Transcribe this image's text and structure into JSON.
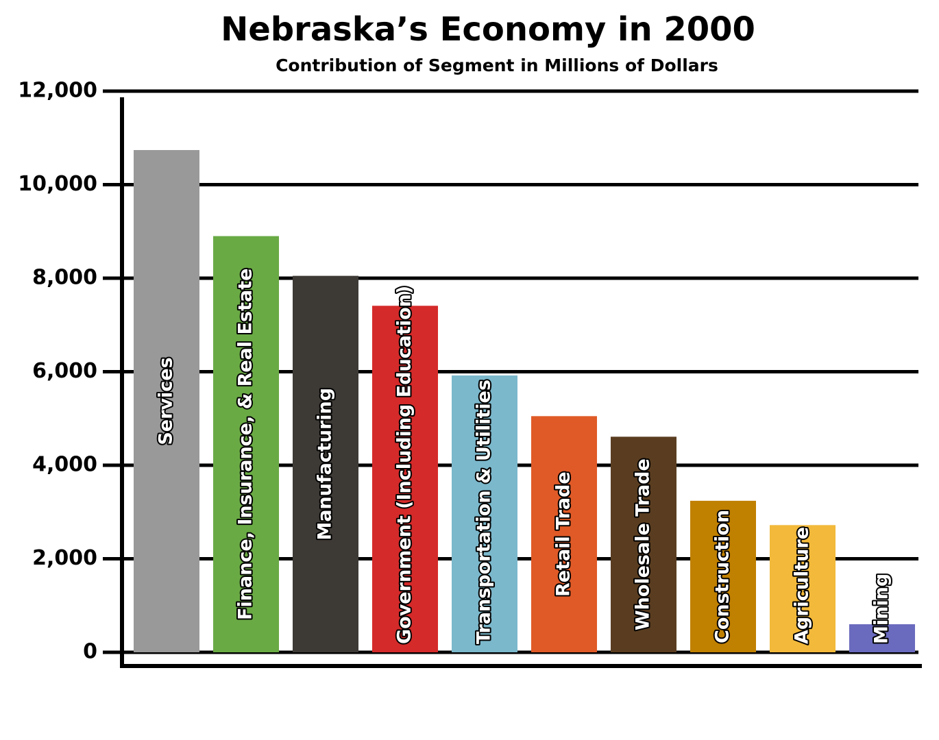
{
  "chart_data": {
    "type": "bar",
    "title": "Nebraska’s Economy in 2000",
    "subtitle": "Contribution of Segment in Millions of Dollars",
    "categories": [
      "Services",
      "Finance, Insurance, & Real Estate",
      "Manufacturing",
      "Government (Including Education)",
      "Transportation & Utilities",
      "Retail Trade",
      "Wholesale Trade",
      "Construction",
      "Agriculture",
      "Mining"
    ],
    "values": [
      10740,
      8900,
      8050,
      7410,
      5920,
      5050,
      4610,
      3240,
      2720,
      600
    ],
    "colors": [
      "#999999",
      "#6aaa45",
      "#3d3935",
      "#d42a2a",
      "#7bb8cc",
      "#e05a27",
      "#5a3d20",
      "#c08000",
      "#f2b93a",
      "#6a6abf"
    ],
    "ylim": [
      0,
      12000
    ],
    "yticks": [
      {
        "value": 0,
        "label": "0"
      },
      {
        "value": 2000,
        "label": "2,000"
      },
      {
        "value": 4000,
        "label": "4,000"
      },
      {
        "value": 6000,
        "label": "6,000"
      },
      {
        "value": 8000,
        "label": "8,000"
      },
      {
        "value": 10000,
        "label": "10,000"
      },
      {
        "value": 12000,
        "label": "12,000"
      }
    ],
    "grid": true
  }
}
